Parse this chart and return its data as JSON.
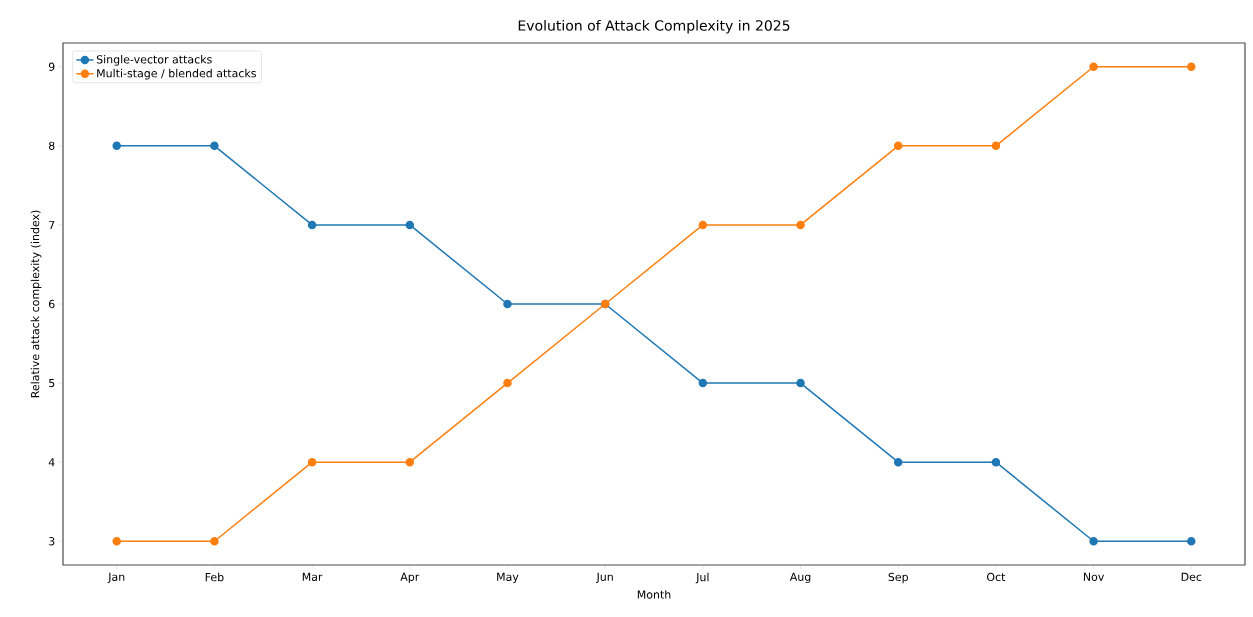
{
  "chart_data": {
    "type": "line",
    "title": "Evolution of Attack Complexity in 2025",
    "xlabel": "Month",
    "ylabel": "Relative attack complexity (index)",
    "categories": [
      "Jan",
      "Feb",
      "Mar",
      "Apr",
      "May",
      "Jun",
      "Jul",
      "Aug",
      "Sep",
      "Oct",
      "Nov",
      "Dec"
    ],
    "series": [
      {
        "name": "Single-vector attacks",
        "color": "#1f77b4",
        "values": [
          8,
          8,
          7,
          7,
          6,
          6,
          5,
          5,
          4,
          4,
          3,
          3
        ]
      },
      {
        "name": "Multi-stage / blended attacks",
        "color": "#ff7f0e",
        "values": [
          3,
          3,
          4,
          4,
          5,
          6,
          7,
          7,
          8,
          8,
          9,
          9
        ]
      }
    ],
    "ylim": [
      2.7,
      9.3
    ],
    "yticks": [
      3,
      4,
      5,
      6,
      7,
      8,
      9
    ],
    "grid": false,
    "legend": "top left",
    "marker": "circle",
    "line_style": "solid"
  }
}
